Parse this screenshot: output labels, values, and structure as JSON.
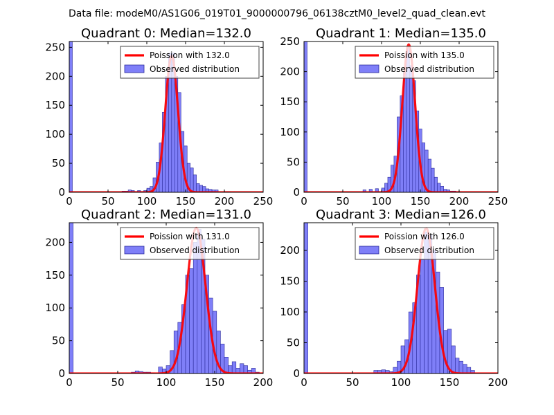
{
  "suptitle": "Data file: modeM0/AS1G06_019T01_9000000796_06138cztM0_level2_quad_clean.evt",
  "colors": {
    "bar_fill": "#7f7ff8",
    "bar_edge": "#2a2a9a",
    "poisson_line": "#ff0000",
    "axis": "#000000",
    "legend_edge": "#444444"
  },
  "chart_data": [
    {
      "type": "histogram",
      "title": "Quadrant 0: Median=132.0",
      "xlim": [
        0,
        250
      ],
      "ylim": [
        0,
        260
      ],
      "xticks": [
        0,
        50,
        100,
        150,
        200,
        250
      ],
      "yticks": [
        0,
        50,
        100,
        150,
        200,
        250
      ],
      "legend_location": "upper-right",
      "legend": [
        "Poission with 132.0",
        "Observed distribution"
      ],
      "bin_width": 4,
      "bins": [
        [
          0,
          260
        ],
        [
          68,
          2
        ],
        [
          72,
          2
        ],
        [
          76,
          4
        ],
        [
          80,
          3
        ],
        [
          84,
          1
        ],
        [
          88,
          3
        ],
        [
          92,
          1
        ],
        [
          96,
          3
        ],
        [
          100,
          7
        ],
        [
          104,
          10
        ],
        [
          108,
          25
        ],
        [
          112,
          52
        ],
        [
          116,
          85
        ],
        [
          120,
          138
        ],
        [
          124,
          200
        ],
        [
          128,
          240
        ],
        [
          132,
          240
        ],
        [
          136,
          200
        ],
        [
          140,
          172
        ],
        [
          144,
          105
        ],
        [
          148,
          80
        ],
        [
          152,
          50
        ],
        [
          156,
          42
        ],
        [
          160,
          30
        ],
        [
          164,
          15
        ],
        [
          168,
          12
        ],
        [
          172,
          10
        ],
        [
          176,
          6
        ],
        [
          180,
          5
        ],
        [
          184,
          4
        ],
        [
          188,
          4
        ],
        [
          200,
          1
        ],
        [
          204,
          1
        ]
      ],
      "poisson": {
        "mean": 132.0,
        "peak": 235,
        "sigma": 8.2
      }
    },
    {
      "type": "histogram",
      "title": "Quadrant 1: Median=135.0",
      "xlim": [
        0,
        250
      ],
      "ylim": [
        0,
        250
      ],
      "xticks": [
        0,
        50,
        100,
        150,
        200,
        250
      ],
      "yticks": [
        0,
        50,
        100,
        150,
        200,
        250
      ],
      "legend_location": "upper-right",
      "legend": [
        "Poission with 135.0",
        "Observed distribution"
      ],
      "bin_width": 4,
      "bins": [
        [
          0,
          250
        ],
        [
          76,
          4
        ],
        [
          84,
          5
        ],
        [
          92,
          6
        ],
        [
          100,
          7
        ],
        [
          104,
          15
        ],
        [
          108,
          25
        ],
        [
          112,
          45
        ],
        [
          116,
          60
        ],
        [
          120,
          125
        ],
        [
          124,
          160
        ],
        [
          128,
          200
        ],
        [
          132,
          240
        ],
        [
          136,
          210
        ],
        [
          140,
          185
        ],
        [
          144,
          135
        ],
        [
          148,
          105
        ],
        [
          152,
          82
        ],
        [
          156,
          70
        ],
        [
          160,
          55
        ],
        [
          164,
          40
        ],
        [
          168,
          25
        ],
        [
          172,
          15
        ],
        [
          176,
          10
        ],
        [
          180,
          5
        ],
        [
          184,
          4
        ],
        [
          188,
          2
        ],
        [
          192,
          2
        ]
      ],
      "poisson": {
        "mean": 135.0,
        "peak": 245,
        "sigma": 8.2
      }
    },
    {
      "type": "histogram",
      "title": "Quadrant 2: Median=131.0",
      "xlim": [
        0,
        200
      ],
      "ylim": [
        0,
        230
      ],
      "xticks": [
        0,
        50,
        100,
        150,
        200
      ],
      "yticks": [
        0,
        50,
        100,
        150,
        200
      ],
      "legend_location": "upper-right",
      "legend": [
        "Poission with 131.0",
        "Observed distribution"
      ],
      "bin_width": 4,
      "bins": [
        [
          0,
          230
        ],
        [
          64,
          2
        ],
        [
          68,
          4
        ],
        [
          72,
          3
        ],
        [
          76,
          2
        ],
        [
          80,
          2
        ],
        [
          84,
          1
        ],
        [
          92,
          10
        ],
        [
          96,
          7
        ],
        [
          100,
          12
        ],
        [
          104,
          35
        ],
        [
          108,
          65
        ],
        [
          112,
          78
        ],
        [
          116,
          105
        ],
        [
          120,
          150
        ],
        [
          124,
          160
        ],
        [
          128,
          200
        ],
        [
          132,
          220
        ],
        [
          136,
          205
        ],
        [
          140,
          150
        ],
        [
          144,
          115
        ],
        [
          148,
          95
        ],
        [
          152,
          65
        ],
        [
          156,
          45
        ],
        [
          160,
          25
        ],
        [
          164,
          12
        ],
        [
          168,
          18
        ],
        [
          172,
          8
        ],
        [
          176,
          15
        ],
        [
          180,
          12
        ],
        [
          184,
          5
        ],
        [
          188,
          8
        ],
        [
          192,
          2
        ]
      ],
      "poisson": {
        "mean": 131.0,
        "peak": 222,
        "sigma": 9.6
      }
    },
    {
      "type": "histogram",
      "title": "Quadrant 3: Median=126.0",
      "xlim": [
        0,
        200
      ],
      "ylim": [
        0,
        245
      ],
      "xticks": [
        0,
        50,
        100,
        150,
        200
      ],
      "yticks": [
        0,
        50,
        100,
        150,
        200
      ],
      "legend_location": "upper-right",
      "legend": [
        "Poission with 126.0",
        "Observed distribution"
      ],
      "bin_width": 4,
      "bins": [
        [
          0,
          245
        ],
        [
          72,
          5
        ],
        [
          76,
          5
        ],
        [
          80,
          6
        ],
        [
          84,
          5
        ],
        [
          88,
          3
        ],
        [
          92,
          10
        ],
        [
          96,
          20
        ],
        [
          100,
          45
        ],
        [
          104,
          55
        ],
        [
          108,
          100
        ],
        [
          112,
          115
        ],
        [
          116,
          160
        ],
        [
          120,
          185
        ],
        [
          124,
          230
        ],
        [
          128,
          225
        ],
        [
          132,
          200
        ],
        [
          136,
          165
        ],
        [
          140,
          140
        ],
        [
          144,
          70
        ],
        [
          148,
          72
        ],
        [
          152,
          45
        ],
        [
          156,
          25
        ],
        [
          160,
          20
        ],
        [
          164,
          15
        ],
        [
          168,
          10
        ],
        [
          172,
          5
        ]
      ],
      "poisson": {
        "mean": 126.0,
        "peak": 236,
        "sigma": 9.0
      }
    }
  ]
}
